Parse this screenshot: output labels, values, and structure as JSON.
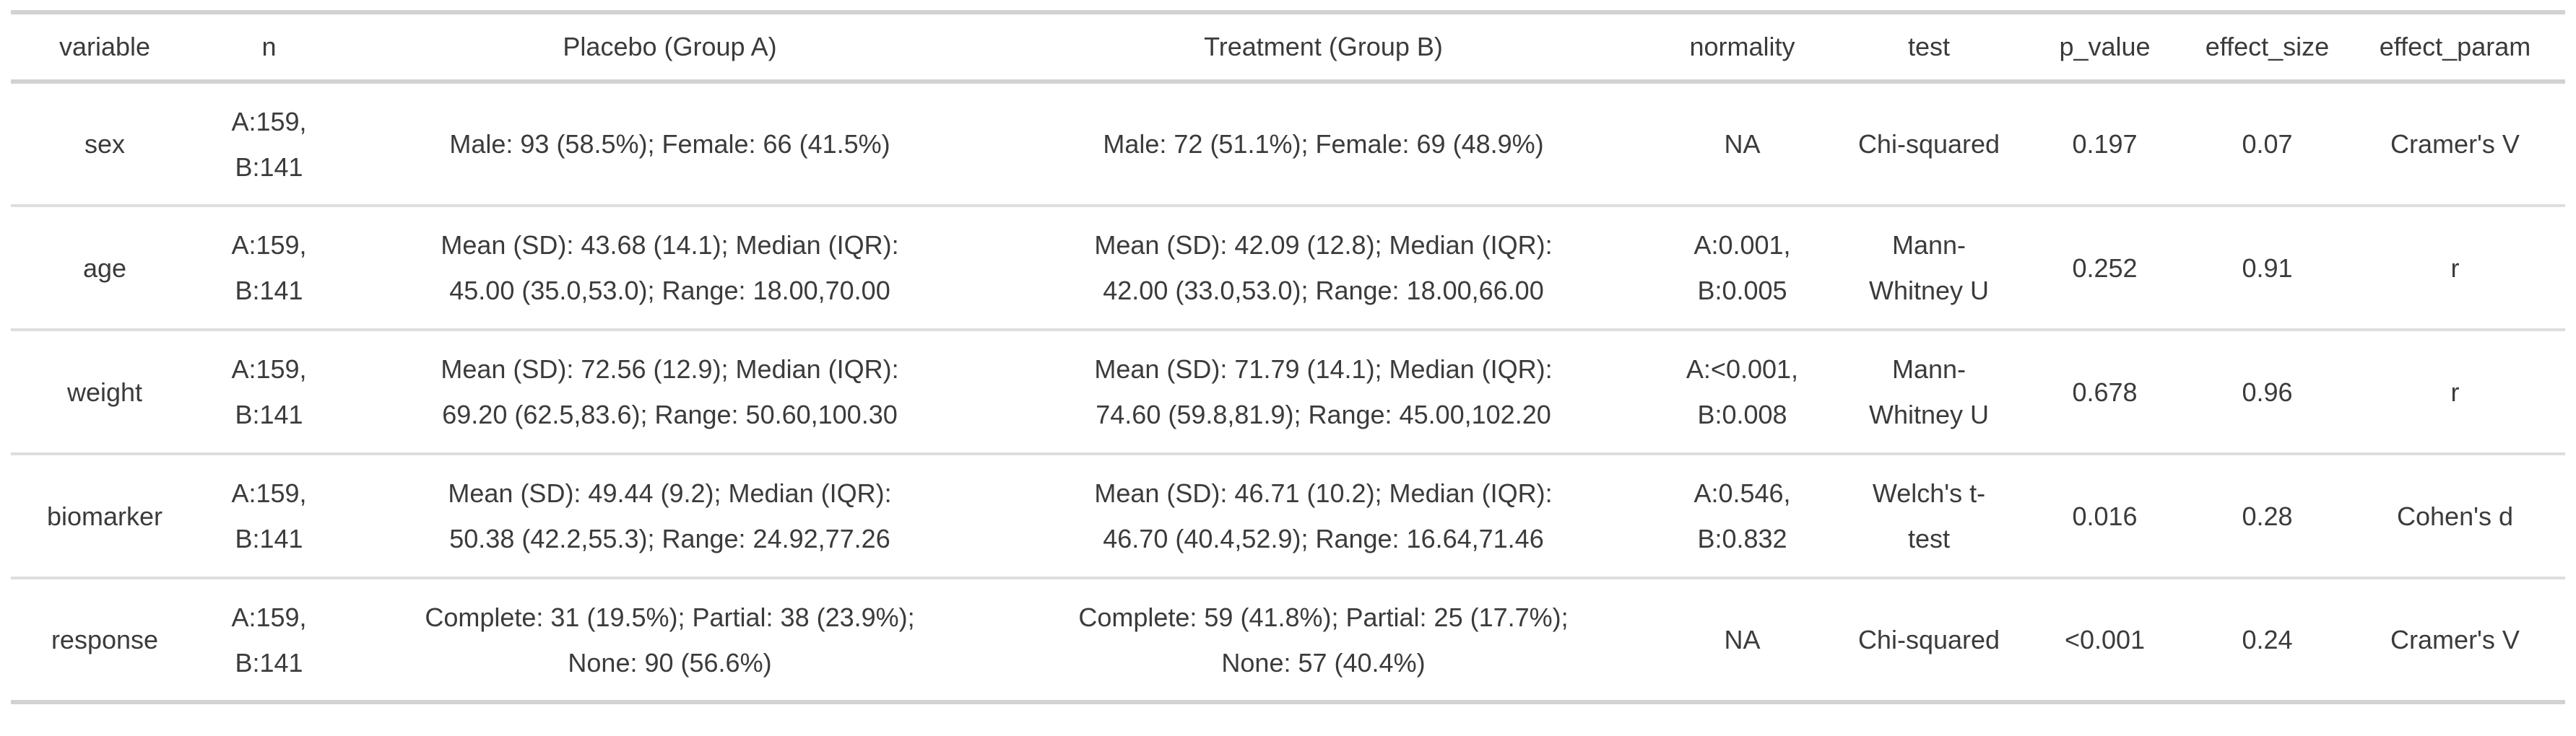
{
  "chart_data": {
    "type": "table",
    "title": "Group comparison summary table: Placebo (Group A) vs Treatment (Group B)",
    "columns": [
      "variable",
      "n",
      "Placebo (Group A)",
      "Treatment (Group B)",
      "normality",
      "test",
      "p_value",
      "effect_size",
      "effect_param"
    ],
    "rows": [
      [
        "sex",
        "A:159, B:141",
        "Male: 93 (58.5%); Female: 66 (41.5%)",
        "Male: 72 (51.1%); Female: 69 (48.9%)",
        "NA",
        "Chi-squared",
        "0.197",
        "0.07",
        "Cramer's V"
      ],
      [
        "age",
        "A:159, B:141",
        "Mean (SD): 43.68 (14.1); Median (IQR): 45.00 (35.0,53.0); Range: 18.00,70.00",
        "Mean (SD): 42.09 (12.8); Median (IQR): 42.00 (33.0,53.0); Range: 18.00,66.00",
        "A:0.001, B:0.005",
        "Mann-Whitney U",
        "0.252",
        "0.91",
        "r"
      ],
      [
        "weight",
        "A:159, B:141",
        "Mean (SD): 72.56 (12.9); Median (IQR): 69.20 (62.5,83.6); Range: 50.60,100.30",
        "Mean (SD): 71.79 (14.1); Median (IQR): 74.60 (59.8,81.9); Range: 45.00,102.20",
        "A:<0.001, B:0.008",
        "Mann-Whitney U",
        "0.678",
        "0.96",
        "r"
      ],
      [
        "biomarker",
        "A:159, B:141",
        "Mean (SD): 49.44 (9.2); Median (IQR): 50.38 (42.2,55.3); Range: 24.92,77.26",
        "Mean (SD): 46.71 (10.2); Median (IQR): 46.70 (40.4,52.9); Range: 16.64,71.46",
        "A:0.546, B:0.832",
        "Welch's t-test",
        "0.016",
        "0.28",
        "Cohen's d"
      ],
      [
        "response",
        "A:159, B:141",
        "Complete: 31 (19.5%); Partial: 38 (23.9%); None: 90 (56.6%)",
        "Complete: 59 (41.8%); Partial: 25 (17.7%); None: 57 (40.4%)",
        "NA",
        "Chi-squared",
        "<0.001",
        "0.24",
        "Cramer's V"
      ]
    ]
  },
  "table": {
    "columns": [
      "variable",
      "n",
      "Placebo (Group A)",
      "Treatment (Group B)",
      "normality",
      "test",
      "p_value",
      "effect_size",
      "effect_param"
    ],
    "rows": [
      [
        "sex",
        "A:159,\nB:141",
        "Male: 93 (58.5%); Female: 66 (41.5%)",
        "Male: 72 (51.1%); Female: 69 (48.9%)",
        "NA",
        "Chi-squared",
        "0.197",
        "0.07",
        "Cramer's V"
      ],
      [
        "age",
        "A:159,\nB:141",
        "Mean (SD): 43.68 (14.1); Median (IQR):\n45.00 (35.0,53.0); Range: 18.00,70.00",
        "Mean (SD): 42.09 (12.8); Median (IQR):\n42.00 (33.0,53.0); Range: 18.00,66.00",
        "A:0.001,\nB:0.005",
        "Mann-\nWhitney U",
        "0.252",
        "0.91",
        "r"
      ],
      [
        "weight",
        "A:159,\nB:141",
        "Mean (SD): 72.56 (12.9); Median (IQR):\n69.20 (62.5,83.6); Range: 50.60,100.30",
        "Mean (SD): 71.79 (14.1); Median (IQR):\n74.60 (59.8,81.9); Range: 45.00,102.20",
        "A:<0.001,\nB:0.008",
        "Mann-\nWhitney U",
        "0.678",
        "0.96",
        "r"
      ],
      [
        "biomarker",
        "A:159,\nB:141",
        "Mean (SD): 49.44 (9.2); Median (IQR):\n50.38 (42.2,55.3); Range: 24.92,77.26",
        "Mean (SD): 46.71 (10.2); Median (IQR):\n46.70 (40.4,52.9); Range: 16.64,71.46",
        "A:0.546,\nB:0.832",
        "Welch's t-\ntest",
        "0.016",
        "0.28",
        "Cohen's d"
      ],
      [
        "response",
        "A:159,\nB:141",
        "Complete: 31 (19.5%); Partial: 38 (23.9%);\nNone: 90 (56.6%)",
        "Complete: 59 (41.8%); Partial: 25 (17.7%);\nNone: 57 (40.4%)",
        "NA",
        "Chi-squared",
        "<0.001",
        "0.24",
        "Cramer's V"
      ]
    ]
  },
  "colors": {
    "table_border": "#d2d2d2",
    "row_divider": "#dedede",
    "text": "#3b3b3b",
    "background": "#ffffff"
  }
}
